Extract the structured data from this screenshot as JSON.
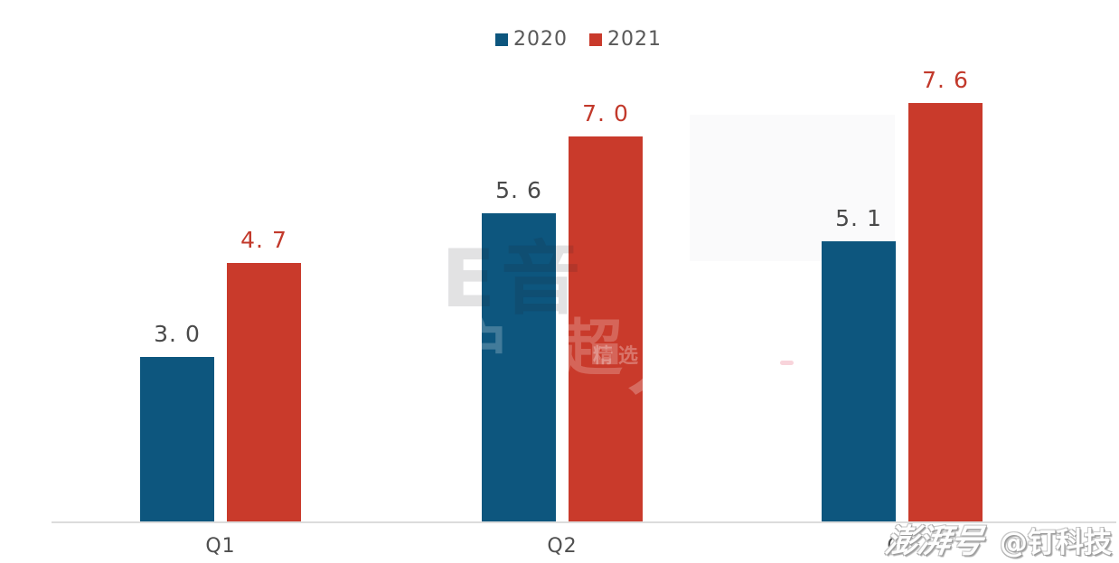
{
  "legend": {
    "items": [
      {
        "label": "2020",
        "color": "#0d567e"
      },
      {
        "label": "2021",
        "color": "#c93a2b"
      }
    ]
  },
  "chart_data": {
    "type": "bar",
    "categories": [
      "Q1",
      "Q2",
      "Q3"
    ],
    "series": [
      {
        "name": "2020",
        "color": "#0d567e",
        "values": [
          3.0,
          5.6,
          5.1
        ],
        "value_labels": [
          "3. 0",
          "5. 6",
          "5. 1"
        ]
      },
      {
        "name": "2021",
        "color": "#c93a2b",
        "values": [
          4.7,
          7.0,
          7.6
        ],
        "value_labels": [
          "4. 7",
          "7. 0",
          "7. 6"
        ]
      }
    ],
    "title": "",
    "xlabel": "",
    "ylabel": "",
    "value_axis_visible": false,
    "ylim": [
      0,
      8.5
    ],
    "grid": "off",
    "legend_position": "top-center"
  },
  "colors": {
    "label_dark": "#4a4a4a",
    "label_red": "#c2392b",
    "axis_line": "#dcdcdc",
    "legend_text": "#595959"
  },
  "watermarks": {
    "center_row1": "E音",
    "center_row2": "户 超 越",
    "center_row2b": "人",
    "center_row3": "精选",
    "bottom_right_script": "澎湃号",
    "bottom_right_handle": "@钉科技"
  }
}
